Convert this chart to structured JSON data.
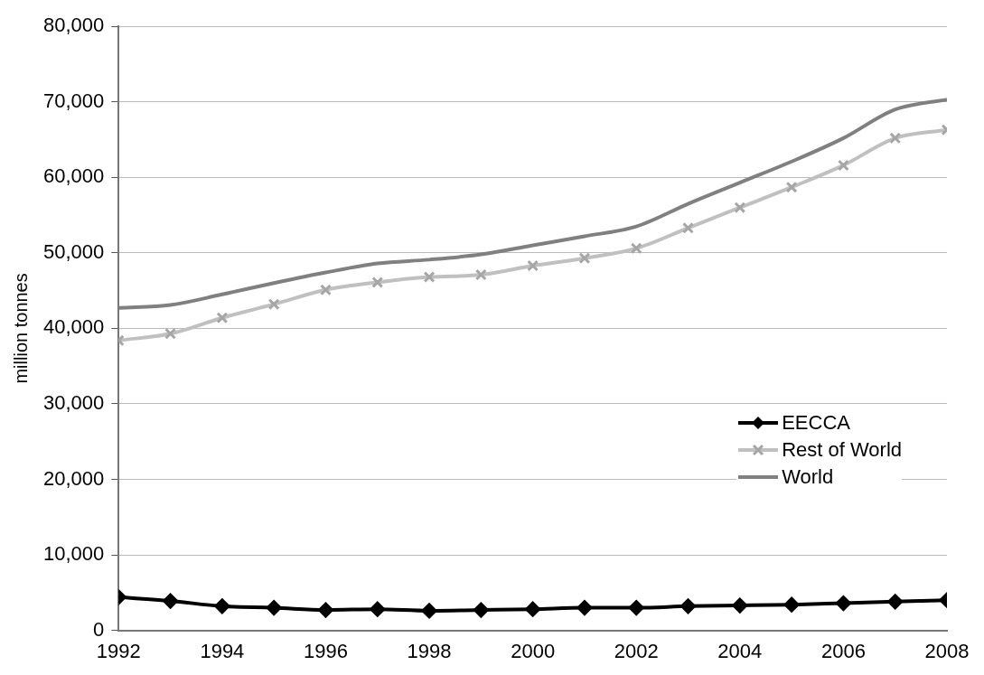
{
  "chart_data": {
    "type": "line",
    "ylabel": "million tonnes",
    "x": [
      1992,
      1993,
      1994,
      1995,
      1996,
      1997,
      1998,
      1999,
      2000,
      2001,
      2002,
      2003,
      2004,
      2005,
      2006,
      2007,
      2008
    ],
    "xlim": [
      1992,
      2008
    ],
    "xticks": [
      1992,
      1994,
      1996,
      1998,
      2000,
      2002,
      2004,
      2006,
      2008
    ],
    "ylim": [
      0,
      80000
    ],
    "yticks": [
      0,
      {
        "value": 10000,
        "label": "10,000"
      },
      {
        "value": 20000,
        "label": "20,000"
      },
      {
        "value": 30000,
        "label": "30,000"
      },
      {
        "value": 40000,
        "label": "40,000"
      },
      {
        "value": 50000,
        "label": "50,000"
      },
      {
        "value": 60000,
        "label": "60,000"
      },
      {
        "value": 70000,
        "label": "70,000"
      },
      {
        "value": 80000,
        "label": "80,000"
      }
    ],
    "grid": "y",
    "legend": "right",
    "line_style": "solid",
    "series": [
      {
        "name": "EECCA",
        "color": "#000000",
        "marker": "diamond",
        "values": [
          4400,
          3900,
          3200,
          3000,
          2700,
          2800,
          2600,
          2700,
          2800,
          3000,
          3000,
          3200,
          3300,
          3400,
          3600,
          3800,
          4000
        ]
      },
      {
        "name": "Rest of World",
        "color": "#c0c0c0",
        "marker": "cross",
        "values": [
          38400,
          39300,
          41400,
          43200,
          45100,
          46100,
          46800,
          47100,
          48300,
          49300,
          50600,
          53300,
          56000,
          58700,
          61600,
          65200,
          66300
        ]
      },
      {
        "name": "World",
        "color": "#808080",
        "marker": "none",
        "values": [
          42700,
          43100,
          44500,
          46000,
          47400,
          48600,
          49100,
          49800,
          51000,
          52200,
          53500,
          56500,
          59300,
          62100,
          65200,
          69000,
          70300
        ]
      }
    ]
  }
}
